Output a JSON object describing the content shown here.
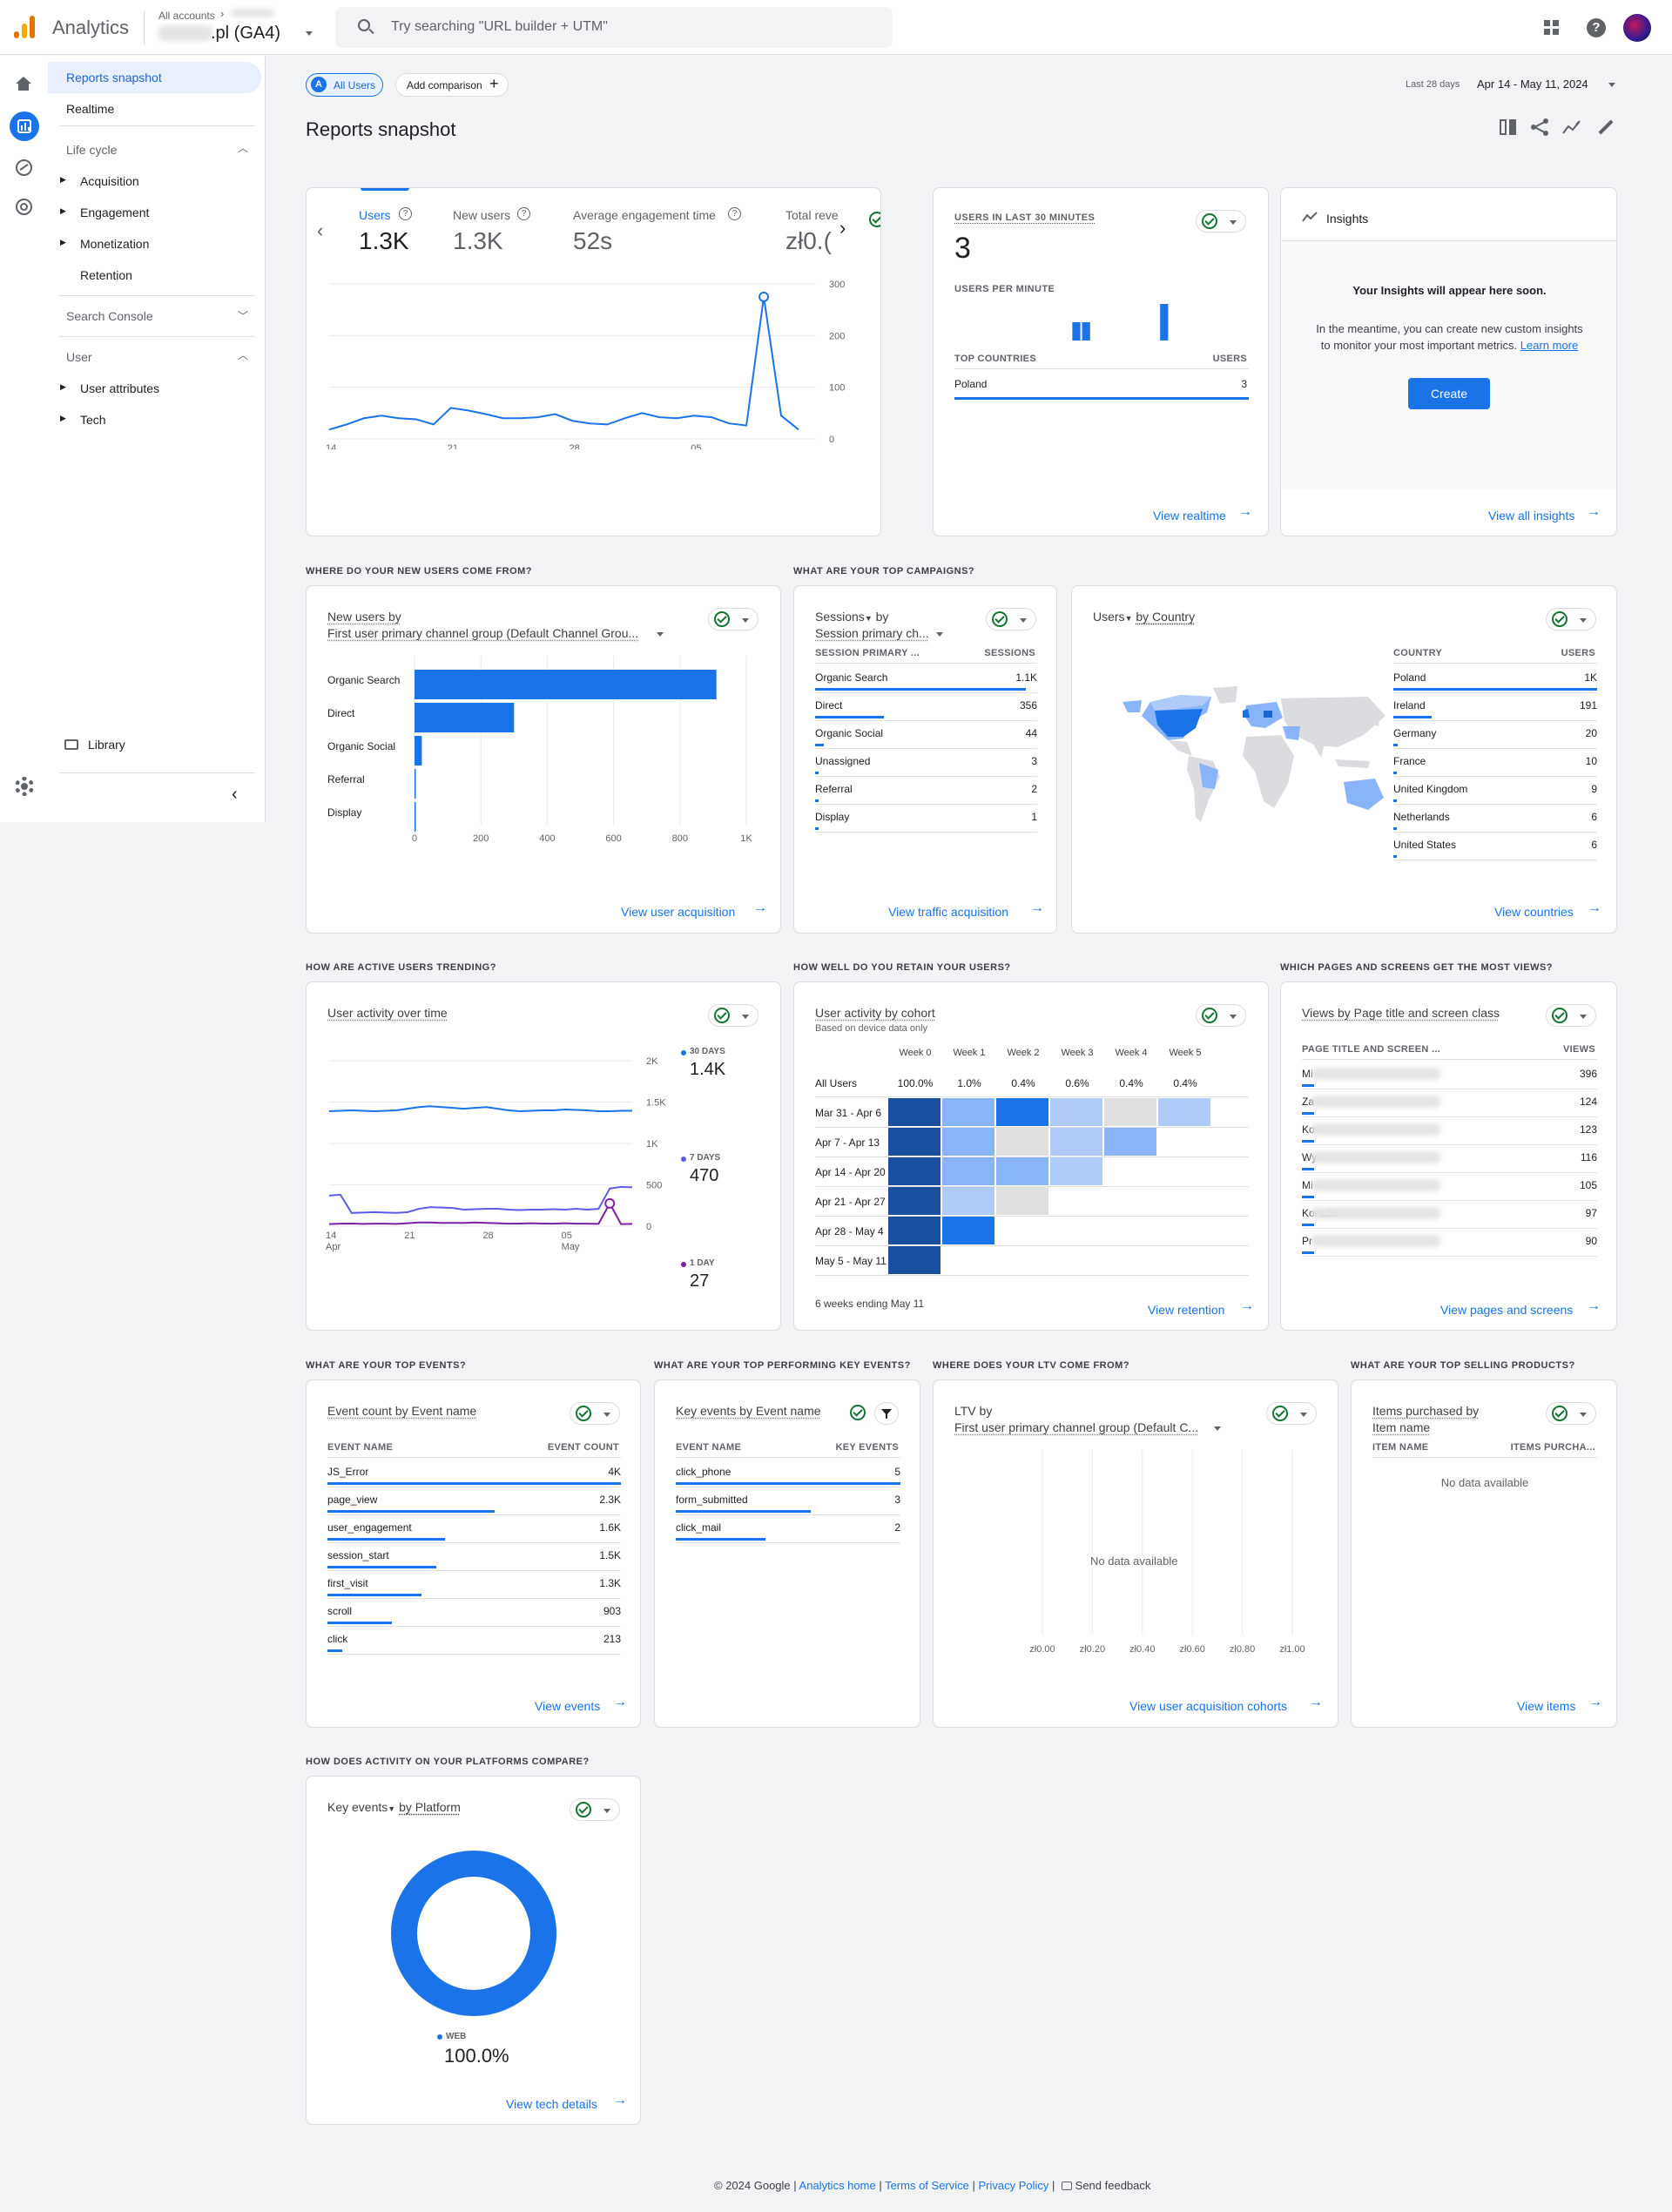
{
  "app": {
    "name": "Analytics",
    "account_crumb": "All accounts",
    "property": ".pl (GA4)",
    "search_placeholder": "Try searching \"URL builder + UTM\""
  },
  "sidebar": {
    "items": [
      "Reports snapshot",
      "Realtime"
    ],
    "lifecycle": {
      "title": "Life cycle",
      "items": [
        "Acquisition",
        "Engagement",
        "Monetization",
        "Retention"
      ]
    },
    "search_console": "Search Console",
    "user": {
      "title": "User",
      "items": [
        "User attributes",
        "Tech"
      ]
    },
    "library": "Library"
  },
  "header": {
    "segment_badge": "A",
    "segment": "All Users",
    "add_comparison": "Add comparison",
    "date_label": "Last 28 days",
    "date_range": "Apr 14 - May 11, 2024",
    "title": "Reports snapshot"
  },
  "overview": {
    "metrics": [
      {
        "label": "Users",
        "value": "1.3K"
      },
      {
        "label": "New users",
        "value": "1.3K"
      },
      {
        "label": "Average engagement time",
        "value": "52s"
      },
      {
        "label": "Total reve",
        "value": "zł0.("
      }
    ],
    "chart_data": {
      "type": "line",
      "x": [
        "Apr 14",
        "Apr 15",
        "Apr 16",
        "Apr 17",
        "Apr 18",
        "Apr 19",
        "Apr 20",
        "Apr 21",
        "Apr 22",
        "Apr 23",
        "Apr 24",
        "Apr 25",
        "Apr 26",
        "Apr 27",
        "Apr 28",
        "Apr 29",
        "Apr 30",
        "May 1",
        "May 2",
        "May 3",
        "May 4",
        "May 5",
        "May 6",
        "May 7",
        "May 8",
        "May 9",
        "May 10",
        "May 11"
      ],
      "values": [
        18,
        28,
        40,
        45,
        40,
        38,
        28,
        60,
        55,
        48,
        40,
        40,
        42,
        48,
        35,
        30,
        28,
        40,
        50,
        42,
        40,
        45,
        42,
        30,
        26,
        275,
        45,
        18
      ],
      "ylim": [
        0,
        300
      ],
      "yticks": [
        "300",
        "200",
        "100",
        "0"
      ],
      "xticks": [
        {
          "d": "14",
          "m": "Apr"
        },
        {
          "d": "21",
          "m": ""
        },
        {
          "d": "28",
          "m": ""
        },
        {
          "d": "05",
          "m": "May"
        }
      ]
    }
  },
  "realtime": {
    "title": "USERS IN LAST 30 MINUTES",
    "value": "3",
    "per_minute": "USERS PER MINUTE",
    "per_minute_data": {
      "type": "bar",
      "values": [
        0,
        0,
        0,
        0,
        0,
        0,
        0,
        0,
        0,
        0,
        0,
        0,
        1,
        1,
        0,
        0,
        0,
        0,
        0,
        0,
        0,
        2,
        0,
        0,
        0,
        0,
        0,
        0,
        0,
        0
      ]
    },
    "countries_header": "TOP COUNTRIES",
    "users_header": "USERS",
    "rows": [
      {
        "name": "Poland",
        "value": "3"
      }
    ],
    "link": "View realtime"
  },
  "insights": {
    "title": "Insights",
    "headline": "Your Insights will appear here soon.",
    "body1": "In the meantime, you can create new custom insights",
    "body2": "to monitor your most important metrics.",
    "learn_more": "Learn more",
    "button": "Create",
    "link": "View all insights"
  },
  "acquisition": {
    "question": "WHERE DO YOUR NEW USERS COME FROM?",
    "title": "New users by",
    "dimension": "First user primary channel group (Default Channel Grou...",
    "chart_data": {
      "type": "bar",
      "categories": [
        "Organic Search",
        "Direct",
        "Organic Social",
        "Referral",
        "Display"
      ],
      "values": [
        910,
        300,
        22,
        3,
        2
      ],
      "xlim": [
        0,
        1000
      ],
      "xticks": [
        "0",
        "200",
        "400",
        "600",
        "800",
        "1K"
      ]
    },
    "link": "View user acquisition"
  },
  "campaigns": {
    "question": "WHAT ARE YOUR TOP CAMPAIGNS?",
    "title1": "Sessions",
    "title_by": "by",
    "title2": "Session primary ch...",
    "col1": "SESSION PRIMARY ...",
    "col2": "SESSIONS",
    "rows": [
      {
        "name": "Organic Search",
        "value": "1.1K",
        "pct": 0.95
      },
      {
        "name": "Direct",
        "value": "356",
        "pct": 0.31
      },
      {
        "name": "Organic Social",
        "value": "44",
        "pct": 0.04
      },
      {
        "name": "Unassigned",
        "value": "3",
        "pct": 0.01
      },
      {
        "name": "Referral",
        "value": "2",
        "pct": 0.01
      },
      {
        "name": "Display",
        "value": "1",
        "pct": 0.01
      }
    ],
    "link": "View traffic acquisition"
  },
  "countries": {
    "title1": "Users",
    "title2": "by Country",
    "col1": "COUNTRY",
    "col2": "USERS",
    "rows": [
      {
        "name": "Poland",
        "value": "1K",
        "pct": 1
      },
      {
        "name": "Ireland",
        "value": "191",
        "pct": 0.19
      },
      {
        "name": "Germany",
        "value": "20",
        "pct": 0.02
      },
      {
        "name": "France",
        "value": "10",
        "pct": 0.01
      },
      {
        "name": "United Kingdom",
        "value": "9",
        "pct": 0.01
      },
      {
        "name": "Netherlands",
        "value": "6",
        "pct": 0.01
      },
      {
        "name": "United States",
        "value": "6",
        "pct": 0.01
      }
    ],
    "link": "View countries"
  },
  "activity": {
    "question": "HOW ARE ACTIVE USERS TRENDING?",
    "title": "User activity over time",
    "legend": [
      {
        "label": "30 DAYS",
        "value": "1.4K",
        "color": "#1a73e8"
      },
      {
        "label": "7 DAYS",
        "value": "470",
        "color": "#5e5ce6"
      },
      {
        "label": "1 DAY",
        "value": "27",
        "color": "#7b1fa2"
      }
    ],
    "chart_data": {
      "type": "line",
      "series": [
        {
          "name": "30 DAYS",
          "values": [
            1390,
            1395,
            1400,
            1395,
            1390,
            1395,
            1400,
            1420,
            1440,
            1450,
            1440,
            1430,
            1420,
            1430,
            1440,
            1420,
            1400,
            1390,
            1395,
            1400,
            1400,
            1410,
            1405,
            1400,
            1390,
            1390,
            1395,
            1395
          ]
        },
        {
          "name": "7 DAYS",
          "values": [
            370,
            380,
            160,
            165,
            170,
            165,
            160,
            170,
            210,
            230,
            225,
            220,
            200,
            205,
            210,
            210,
            200,
            195,
            200,
            200,
            205,
            200,
            210,
            200,
            210,
            455,
            475,
            470
          ]
        },
        {
          "name": "1 DAY",
          "values": [
            25,
            30,
            32,
            28,
            30,
            30,
            28,
            35,
            45,
            45,
            40,
            40,
            40,
            45,
            40,
            35,
            30,
            32,
            35,
            32,
            30,
            35,
            30,
            30,
            28,
            275,
            25,
            27
          ]
        }
      ],
      "yticks": [
        "2K",
        "1.5K",
        "1K",
        "500",
        "0"
      ],
      "xticks": [
        {
          "d": "14",
          "m": "Apr"
        },
        {
          "d": "21",
          "m": ""
        },
        {
          "d": "28",
          "m": ""
        },
        {
          "d": "05",
          "m": "May"
        }
      ]
    }
  },
  "retention": {
    "question": "HOW WELL DO YOU RETAIN YOUR USERS?",
    "title": "User activity by cohort",
    "subtitle": "Based on device data only",
    "weeks": [
      "Week 0",
      "Week 1",
      "Week 2",
      "Week 3",
      "Week 4",
      "Week 5"
    ],
    "all_users_label": "All Users",
    "all_users": [
      "100.0%",
      "1.0%",
      "0.4%",
      "0.6%",
      "0.4%",
      "0.4%"
    ],
    "cohorts": [
      {
        "label": "Mar 31 - Apr 6",
        "cells": [
          1,
          0.45,
          0.8,
          0.35,
          0.2,
          0.3
        ]
      },
      {
        "label": "Apr 7 - Apr 13",
        "cells": [
          1,
          0.45,
          0.2,
          0.35,
          0.45
        ]
      },
      {
        "label": "Apr 14 - Apr 20",
        "cells": [
          1,
          0.45,
          0.4,
          0.3
        ]
      },
      {
        "label": "Apr 21 - Apr 27",
        "cells": [
          1,
          0.3,
          0.2
        ]
      },
      {
        "label": "Apr 28 - May 4",
        "cells": [
          1,
          0.8
        ]
      },
      {
        "label": "May 5 - May 11",
        "cells": [
          1
        ]
      }
    ],
    "footer": "6 weeks ending May 11",
    "link": "View retention"
  },
  "pages": {
    "question": "WHICH PAGES AND SCREENS GET THE MOST VIEWS?",
    "title": "Views by Page title and screen class",
    "col1": "PAGE TITLE AND SCREEN ...",
    "col2": "VIEWS",
    "rows": [
      {
        "name": "Mi",
        "value": "396"
      },
      {
        "name": "Za",
        "value": "124"
      },
      {
        "name": "Ko",
        "value": "123"
      },
      {
        "name": "Wy",
        "value": "116"
      },
      {
        "name": "Mi",
        "value": "105"
      },
      {
        "name": "Kontakt",
        "value": "97"
      },
      {
        "name": "Pr",
        "value": "90"
      }
    ],
    "link": "View pages and screens"
  },
  "events": {
    "question": "WHAT ARE YOUR TOP EVENTS?",
    "title": "Event count by Event name",
    "col1": "EVENT NAME",
    "col2": "EVENT COUNT",
    "rows": [
      {
        "name": "JS_Error",
        "value": "4K",
        "pct": 1
      },
      {
        "name": "page_view",
        "value": "2.3K",
        "pct": 0.57
      },
      {
        "name": "user_engagement",
        "value": "1.6K",
        "pct": 0.4
      },
      {
        "name": "session_start",
        "value": "1.5K",
        "pct": 0.37
      },
      {
        "name": "first_visit",
        "value": "1.3K",
        "pct": 0.32
      },
      {
        "name": "scroll",
        "value": "903",
        "pct": 0.22
      },
      {
        "name": "click",
        "value": "213",
        "pct": 0.05
      }
    ],
    "link": "View events"
  },
  "key_events": {
    "question": "WHAT ARE YOUR TOP PERFORMING KEY EVENTS?",
    "title": "Key events by Event name",
    "col1": "EVENT NAME",
    "col2": "KEY EVENTS",
    "rows": [
      {
        "name": "click_phone",
        "value": "5",
        "pct": 1
      },
      {
        "name": "form_submitted",
        "value": "3",
        "pct": 0.6
      },
      {
        "name": "click_mail",
        "value": "2",
        "pct": 0.4
      }
    ]
  },
  "ltv": {
    "question": "WHERE DOES YOUR LTV COME FROM?",
    "title": "LTV by",
    "dimension": "First user primary channel group (Default C...",
    "no_data": "No data available",
    "xticks": [
      "zł0.00",
      "zł0.20",
      "zł0.40",
      "zł0.60",
      "zł0.80",
      "zł1.00"
    ],
    "link": "View user acquisition cohorts"
  },
  "products": {
    "question": "WHAT ARE YOUR TOP SELLING PRODUCTS?",
    "title1": "Items purchased by",
    "title2": "Item name",
    "col1": "ITEM NAME",
    "col2": "ITEMS PURCHA...",
    "no_data": "No data available",
    "link": "View items"
  },
  "platforms": {
    "question": "HOW DOES ACTIVITY ON YOUR PLATFORMS COMPARE?",
    "title1": "Key events",
    "title2": "by Platform",
    "chart_data": {
      "type": "pie",
      "categories": [
        "WEB"
      ],
      "values": [
        100
      ]
    },
    "legend_label": "WEB",
    "legend_value": "100.0%",
    "link": "View tech details"
  },
  "footer": {
    "copyright": "© 2024 Google |",
    "home": "Analytics home",
    "tos": "Terms of Service",
    "privacy": "Privacy Policy",
    "feedback": "Send feedback"
  },
  "colors": {
    "accent": "#1a73e8",
    "heat_dark": "#1a4fa0",
    "grey_cell": "#e0e0e0"
  }
}
